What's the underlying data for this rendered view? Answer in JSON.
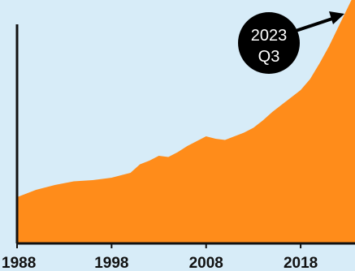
{
  "chart_data": {
    "type": "area",
    "title": "",
    "xlabel": "",
    "ylabel": "",
    "x_ticks": [
      "1988",
      "1998",
      "2008",
      "2018"
    ],
    "xlim": [
      1988,
      2023.75
    ],
    "ylim": [
      0,
      100
    ],
    "grid": false,
    "legend": "none",
    "series": [
      {
        "x": [
          1988,
          1990,
          1992,
          1994,
          1996,
          1998,
          2000,
          2001,
          2002,
          2003,
          2004,
          2005,
          2006,
          2007,
          2008,
          2009,
          2010,
          2011,
          2012,
          2013,
          2014,
          2015,
          2016,
          2017,
          2018,
          2019,
          2020,
          2021,
          2022,
          2023.75
        ],
        "values": [
          19,
          22,
          24,
          25.5,
          26,
          27,
          29,
          32.5,
          34,
          36,
          35.5,
          37.5,
          40,
          42,
          44,
          43,
          42.5,
          44,
          45.5,
          47.5,
          50.5,
          54,
          57,
          60,
          63,
          67.5,
          74,
          81,
          89,
          103
        ]
      }
    ],
    "annotation": {
      "line1": "2023",
      "line2": "Q3"
    }
  },
  "colors": {
    "background": "#d7ecf8",
    "area": "#ff8c1a",
    "axis": "#111111",
    "callout": "#000000",
    "callout_text": "#ffffff"
  }
}
